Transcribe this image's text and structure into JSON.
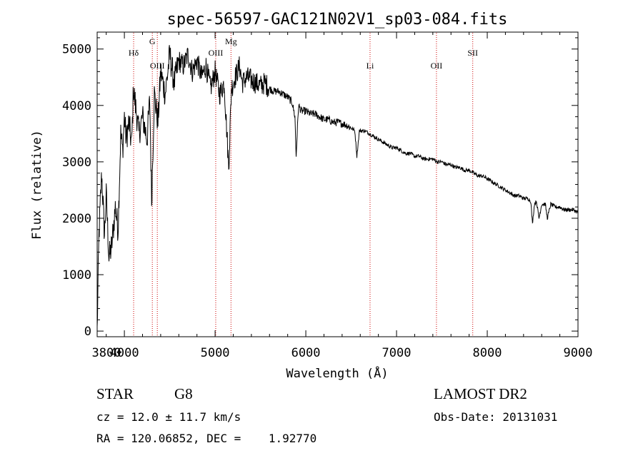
{
  "chart_data": {
    "type": "line",
    "title": "spec-56597-GAC121N02V1_sp03-084.fits",
    "xlabel": "Wavelength (Å)",
    "ylabel": "Flux (relative)",
    "xlim": [
      3700,
      9000
    ],
    "ylim": [
      -100,
      5300
    ],
    "x_ticks": [
      4000,
      5000,
      6000,
      7000,
      8000,
      9000
    ],
    "y_ticks": [
      0,
      1000,
      2000,
      3000,
      4000,
      5000
    ],
    "grid": false,
    "colors": {
      "spectrum": "#000000",
      "line_markers": "#cc0000"
    },
    "series": [
      {
        "x": [
          3700,
          3720,
          3750,
          3780,
          3800,
          3830,
          3860,
          3900,
          3930,
          3960,
          3980,
          4000,
          4020,
          4050,
          4080,
          4100,
          4130,
          4160,
          4200,
          4250,
          4280,
          4300,
          4330,
          4370,
          4400,
          4450,
          4500,
          4550,
          4600,
          4650,
          4700,
          4750,
          4800,
          4850,
          4900,
          4950,
          5000,
          5050,
          5100,
          5150,
          5180,
          5220,
          5270,
          5300,
          5350,
          5400,
          5450,
          5500,
          5550,
          5600,
          5650,
          5700,
          5750,
          5800,
          5850,
          5880,
          5893,
          5920,
          5950,
          6000,
          6050,
          6100,
          6150,
          6200,
          6250,
          6300,
          6350,
          6400,
          6450,
          6500,
          6540,
          6563,
          6590,
          6650,
          6700,
          6750,
          6800,
          6850,
          6900,
          6950,
          7000,
          7050,
          7100,
          7150,
          7200,
          7250,
          7300,
          7350,
          7400,
          7450,
          7500,
          7550,
          7600,
          7650,
          7700,
          7750,
          7800,
          7850,
          7900,
          7950,
          8000,
          8050,
          8100,
          8150,
          8200,
          8250,
          8300,
          8350,
          8400,
          8450,
          8480,
          8498,
          8520,
          8542,
          8570,
          8600,
          8640,
          8662,
          8700,
          8750,
          8800,
          8850,
          8900,
          8950,
          9000
        ],
        "values": [
          0,
          1700,
          2800,
          1700,
          2400,
          1300,
          1500,
          2200,
          1800,
          3500,
          3200,
          3800,
          3400,
          3700,
          3300,
          4300,
          3900,
          3500,
          3800,
          3400,
          4100,
          2300,
          4200,
          3700,
          4600,
          4200,
          4900,
          4400,
          4800,
          4700,
          4900,
          4600,
          4800,
          4500,
          4700,
          4300,
          4600,
          4200,
          4400,
          2900,
          4300,
          4500,
          4700,
          4400,
          4500,
          4450,
          4400,
          4350,
          4400,
          4300,
          4250,
          4250,
          4200,
          4150,
          4050,
          3800,
          3100,
          4000,
          3900,
          3900,
          3850,
          3850,
          3800,
          3750,
          3750,
          3700,
          3700,
          3680,
          3650,
          3600,
          3550,
          3100,
          3550,
          3550,
          3500,
          3450,
          3400,
          3350,
          3300,
          3250,
          3250,
          3200,
          3150,
          3150,
          3100,
          3100,
          3050,
          3050,
          3050,
          3000,
          3000,
          2950,
          2950,
          2900,
          2900,
          2850,
          2850,
          2800,
          2750,
          2750,
          2700,
          2650,
          2600,
          2550,
          2500,
          2450,
          2400,
          2400,
          2350,
          2350,
          2300,
          1900,
          2250,
          2300,
          2000,
          2250,
          2250,
          2000,
          2250,
          2200,
          2200,
          2150,
          2150,
          2150,
          2100
        ]
      }
    ],
    "line_markers": [
      {
        "label": "Hδ",
        "x": 4102,
        "row": 1
      },
      {
        "label": "G",
        "x": 4308,
        "row": 0
      },
      {
        "label": "OIII",
        "x": 4363,
        "row": 2
      },
      {
        "label": "OIII",
        "x": 5007,
        "row": 1
      },
      {
        "label": "Mg",
        "x": 5175,
        "row": 0
      },
      {
        "label": "Li",
        "x": 6708,
        "row": 2
      },
      {
        "label": "OII",
        "x": 7440,
        "row": 2
      },
      {
        "label": "SII",
        "x": 7840,
        "row": 1
      }
    ]
  },
  "info": {
    "object_class": "STAR",
    "subclass": "G8",
    "survey": "LAMOST DR2",
    "cz": "cz = 12.0 ± 11.7 km/s",
    "obs_date": "Obs-Date: 20131031",
    "coords": "RA = 120.06852, DEC =    1.92770"
  }
}
